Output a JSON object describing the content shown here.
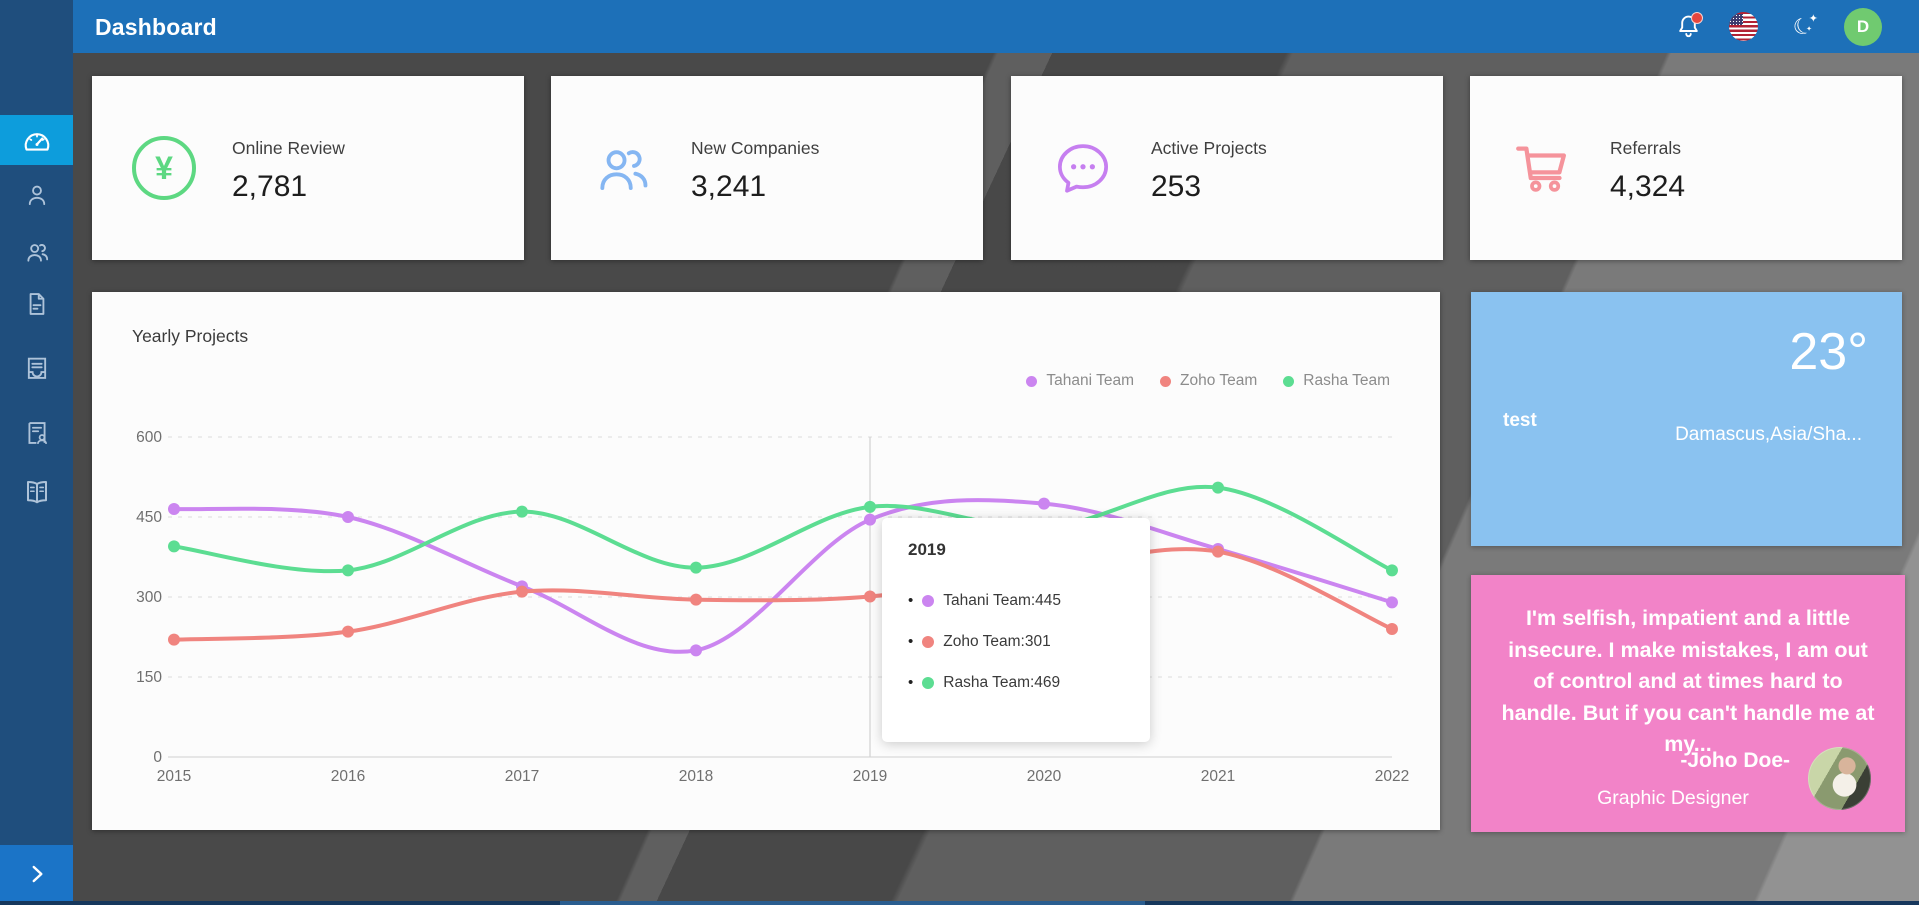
{
  "header": {
    "title": "Dashboard",
    "user_initial": "D",
    "notification_has_badge": true
  },
  "sidebar": {
    "items": [
      {
        "icon": "gauge-icon",
        "active": true
      },
      {
        "icon": "user-icon",
        "active": false
      },
      {
        "icon": "users-icon",
        "active": false
      },
      {
        "icon": "file-icon",
        "active": false
      },
      {
        "icon": "archive-doc-icon",
        "active": false
      },
      {
        "icon": "report-user-icon",
        "active": false
      },
      {
        "icon": "book-icon",
        "active": false
      }
    ],
    "toggle_label": "›"
  },
  "stats": [
    {
      "label": "Online Review",
      "value": "2,781",
      "icon": "yen-icon",
      "color": "#5dd882"
    },
    {
      "label": "New Companies",
      "value": "3,241",
      "icon": "people-icon",
      "color": "#85b6f2"
    },
    {
      "label": "Active Projects",
      "value": "253",
      "icon": "chat-bubble-icon",
      "color": "#c67ff0"
    },
    {
      "label": "Referrals",
      "value": "4,324",
      "icon": "cart-icon",
      "color": "#f5939b"
    }
  ],
  "chart": {
    "title": "Yearly Projects",
    "chart_data": {
      "type": "line",
      "categories": [
        "2015",
        "2016",
        "2017",
        "2018",
        "2019",
        "2020",
        "2021",
        "2022"
      ],
      "series": [
        {
          "name": "Tahani Team",
          "color": "#cb85f0",
          "values": [
            465,
            450,
            320,
            200,
            445,
            475,
            390,
            290
          ]
        },
        {
          "name": "Zoho Team",
          "color": "#f0847f",
          "values": [
            220,
            235,
            310,
            295,
            301,
            350,
            385,
            240
          ]
        },
        {
          "name": "Rasha Team",
          "color": "#5cdd92",
          "values": [
            395,
            350,
            460,
            355,
            469,
            430,
            505,
            350
          ]
        }
      ],
      "title": "Yearly Projects",
      "xlabel": "",
      "ylabel": "",
      "ylim": [
        0,
        600
      ],
      "yticks": [
        0,
        150,
        300,
        450,
        600
      ],
      "grid": true,
      "legend_position": "top-right",
      "hover_index": 4
    },
    "tooltip": {
      "title": "2019",
      "rows": [
        {
          "series": "Tahani Team",
          "value": "445"
        },
        {
          "series": "Zoho Team",
          "value": "301"
        },
        {
          "series": "Rasha Team",
          "value": "469"
        }
      ]
    }
  },
  "weather": {
    "temperature": "23°",
    "name": "test",
    "location": "Damascus,Asia/Sha..."
  },
  "quote": {
    "text": "I'm selfish, impatient and a little insecure. I make mistakes, I am out of control and at times hard to handle. But if you can't handle me at my...",
    "author": "-Joho Doe-",
    "role": "Graphic Designer"
  },
  "colors": {
    "header_blue": "#1d70b8",
    "sidebar_blue": "#1f4e7d",
    "sidebar_active": "#0d9ddc",
    "sidebar_toggle": "#1b74c7",
    "weather_blue": "#8ac2f0",
    "quote_pink": "#f283c8",
    "avatar_green": "#70ca70",
    "badge_red": "#e8463d"
  }
}
